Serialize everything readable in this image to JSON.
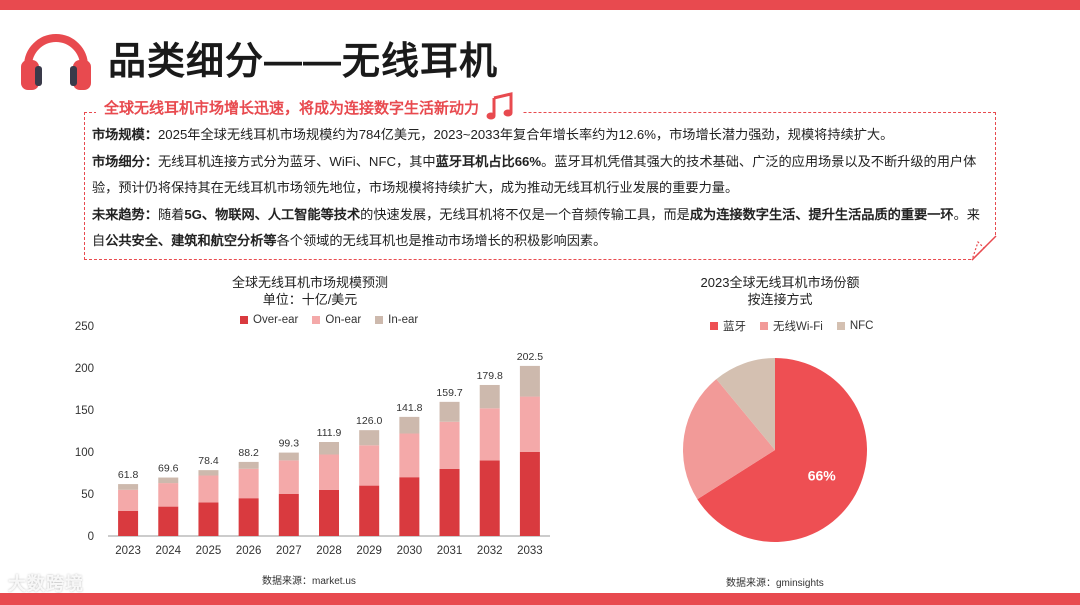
{
  "header": {
    "title": "品类细分——无线耳机"
  },
  "summary": {
    "heading": "全球无线耳机市场增长迅速，将成为连接数字生活新动力",
    "p1_label": "市场规模：",
    "p1_text": "2025年全球无线耳机市场规模约为784亿美元，2023~2033年复合年增长率约为12.6%，市场增长潜力强劲，规模将持续扩大。",
    "p2_label": "市场细分：",
    "p2_text_a": "无线耳机连接方式分为蓝牙、WiFi、NFC，其中",
    "p2_bold": "蓝牙耳机占比66%",
    "p2_text_b": "。蓝牙耳机凭借其强大的技术基础、广泛的应用场景以及不断升级的用户体验，预计仍将保持其在无线耳机市场领先地位，市场规模将持续扩大，成为推动无线耳机行业发展的重要力量。",
    "p3_label": "未来趋势：",
    "p3_text_a": "随着",
    "p3_bold_a": "5G、物联网、人工智能等技术",
    "p3_text_b": "的快速发展，无线耳机将不仅是一个音频传输工具，而是",
    "p3_bold_b": "成为连接数字生活、提升生活品质的重要一环",
    "p3_text_c": "。来自",
    "p3_bold_c": "公共安全、建筑和航空分析等",
    "p3_text_d": "各个领域的无线耳机也是推动市场增长的积极影响因素。"
  },
  "colors": {
    "accent": "#e84a4f",
    "over_ear": "#d93a3f",
    "on_ear": "#f4a9a9",
    "in_ear": "#cdb9ad",
    "pie_bluetooth": "#ee4f53",
    "pie_wifi": "#f29a98",
    "pie_nfc": "#d4c0b1"
  },
  "chart_data": [
    {
      "type": "bar",
      "stacked": true,
      "title": "全球无线耳机市场规模预测",
      "subtitle": "单位：十亿/美元",
      "categories": [
        "2023",
        "2024",
        "2025",
        "2026",
        "2027",
        "2028",
        "2029",
        "2030",
        "2031",
        "2032",
        "2033"
      ],
      "totals": [
        61.8,
        69.6,
        78.4,
        88.2,
        99.3,
        111.9,
        126.0,
        141.8,
        159.7,
        179.8,
        202.5
      ],
      "total_labels": [
        "61.8",
        "69.6",
        "78.4",
        "88.2",
        "99.3",
        "111.9",
        "126.0",
        "141.8",
        "159.7",
        "179.8",
        "202.5"
      ],
      "series": [
        {
          "name": "Over-ear",
          "values": [
            30,
            35,
            40,
            45,
            50,
            55,
            60,
            70,
            80,
            90,
            100
          ]
        },
        {
          "name": "On-ear",
          "values": [
            25,
            28,
            32,
            35,
            40,
            42,
            48,
            52,
            56,
            62,
            66
          ]
        },
        {
          "name": "In-ear",
          "values": [
            6.8,
            6.6,
            6.4,
            8.2,
            9.3,
            14.9,
            18.0,
            19.8,
            23.7,
            27.8,
            36.5
          ]
        }
      ],
      "yticks": [
        "0",
        "50",
        "100",
        "150",
        "200",
        "250"
      ],
      "ylim": [
        0,
        250
      ],
      "legend_position": "top",
      "grid": false,
      "source": "数据来源：market.us"
    },
    {
      "type": "pie",
      "title": "2023全球无线耳机市场份额",
      "subtitle": "按连接方式",
      "labels": [
        "蓝牙",
        "无线Wi-Fi",
        "NFC"
      ],
      "values": [
        66,
        23,
        11
      ],
      "slice_labels": [
        "66%",
        "",
        ""
      ],
      "legend_position": "top",
      "source": "数据来源：gminsights"
    }
  ],
  "footer": {
    "logo_text": "大数跨境"
  }
}
